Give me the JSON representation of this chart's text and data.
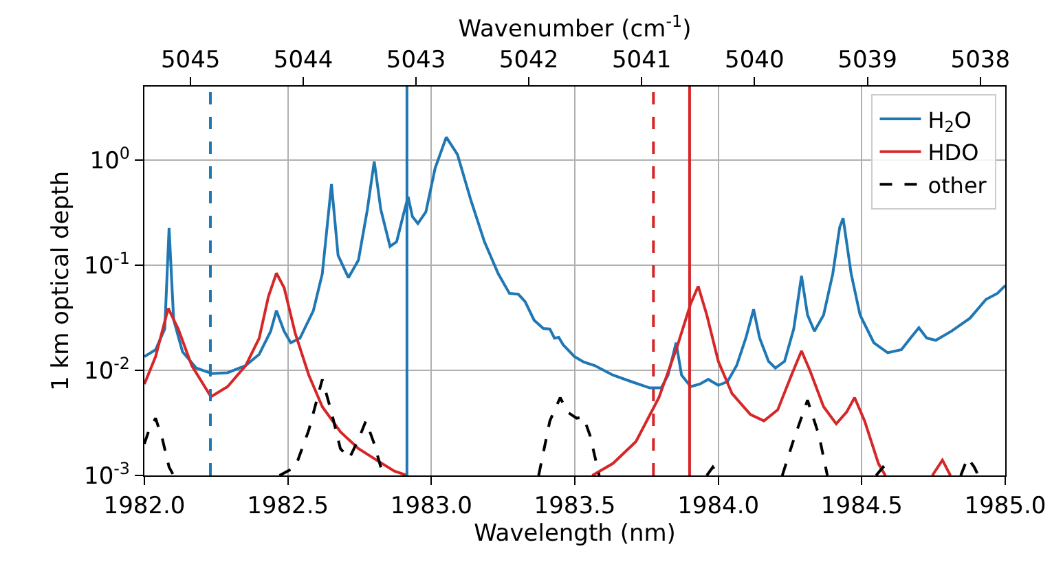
{
  "chart_data": {
    "type": "line",
    "xlabel": "Wavelength (nm)",
    "ylabel": "1 km optical depth",
    "x2label": "Wavenumber (cm$^{-1}$)",
    "xlim": [
      1982.0,
      1985.0
    ],
    "xticks": [
      {
        "value": 1982.0,
        "label": "1982.0"
      },
      {
        "value": 1982.5,
        "label": "1982.5"
      },
      {
        "value": 1983.0,
        "label": "1983.0"
      },
      {
        "value": 1983.5,
        "label": "1983.5"
      },
      {
        "value": 1984.0,
        "label": "1984.0"
      },
      {
        "value": 1984.5,
        "label": "1984.5"
      },
      {
        "value": 1985.0,
        "label": "1985.0"
      }
    ],
    "x2lim": [
      5045.41,
      5037.78
    ],
    "x2ticks": [
      5045,
      5044,
      5043,
      5042,
      5041,
      5040,
      5039,
      5038
    ],
    "ylim": [
      0.001,
      5
    ],
    "log": "y",
    "yticks": [
      {
        "value": 0.001,
        "label": "10$^{-3}$"
      },
      {
        "value": 0.01,
        "label": "10$^{-2}$"
      },
      {
        "value": 0.1,
        "label": "10$^{-1}$"
      },
      {
        "value": 1,
        "label": "10$^{0}$"
      }
    ],
    "grid": true,
    "legend": "top right",
    "series": [
      {
        "name": "H$_{2}$O",
        "color": "#1f77b4",
        "line_style": "solid",
        "x": [
          1982.0,
          1982.039,
          1982.071,
          1982.086,
          1982.102,
          1982.133,
          1982.181,
          1982.236,
          1982.29,
          1982.353,
          1982.4,
          1982.44,
          1982.46,
          1982.487,
          1982.51,
          1982.542,
          1982.589,
          1982.62,
          1982.652,
          1982.675,
          1982.711,
          1982.746,
          1982.777,
          1982.801,
          1982.824,
          1982.856,
          1982.879,
          1982.903,
          1982.919,
          1982.934,
          1982.953,
          1982.981,
          1983.013,
          1983.052,
          1983.091,
          1983.138,
          1983.185,
          1983.233,
          1983.272,
          1983.303,
          1983.327,
          1983.358,
          1983.39,
          1983.413,
          1983.429,
          1983.444,
          1983.46,
          1983.499,
          1983.531,
          1983.569,
          1983.633,
          1983.697,
          1983.761,
          1983.801,
          1983.825,
          1983.853,
          1983.872,
          1983.904,
          1983.936,
          1983.965,
          1984.0,
          1984.032,
          1984.064,
          1984.096,
          1984.123,
          1984.144,
          1984.175,
          1984.199,
          1984.231,
          1984.263,
          1984.29,
          1984.311,
          1984.335,
          1984.367,
          1984.399,
          1984.423,
          1984.435,
          1984.463,
          1984.494,
          1984.542,
          1984.59,
          1984.638,
          1984.67,
          1984.699,
          1984.726,
          1984.758,
          1984.813,
          1984.877,
          1984.933,
          1984.973,
          1985.0
        ],
        "values": [
          0.0135,
          0.0157,
          0.0247,
          0.226,
          0.0302,
          0.015,
          0.0105,
          0.0093,
          0.0095,
          0.0111,
          0.0142,
          0.0235,
          0.037,
          0.0235,
          0.0183,
          0.0202,
          0.037,
          0.083,
          0.59,
          0.124,
          0.076,
          0.112,
          0.337,
          0.97,
          0.337,
          0.151,
          0.167,
          0.305,
          0.448,
          0.29,
          0.249,
          0.321,
          0.834,
          1.65,
          1.13,
          0.413,
          0.167,
          0.083,
          0.054,
          0.053,
          0.045,
          0.03,
          0.025,
          0.0247,
          0.0202,
          0.0206,
          0.0174,
          0.0135,
          0.012,
          0.0111,
          0.009,
          0.0078,
          0.0068,
          0.0068,
          0.009,
          0.0183,
          0.009,
          0.007,
          0.0074,
          0.0082,
          0.0072,
          0.0078,
          0.0111,
          0.0203,
          0.038,
          0.0203,
          0.0122,
          0.0105,
          0.0122,
          0.0248,
          0.079,
          0.0336,
          0.0236,
          0.0336,
          0.083,
          0.229,
          0.28,
          0.083,
          0.0336,
          0.0183,
          0.0147,
          0.0157,
          0.0203,
          0.0254,
          0.0203,
          0.0193,
          0.0236,
          0.0313,
          0.0473,
          0.054,
          0.064
        ]
      },
      {
        "name": "HDO",
        "color": "#d62728",
        "line_style": "solid",
        "x": [
          1982.0,
          1982.039,
          1982.083,
          1982.118,
          1982.165,
          1982.232,
          1982.29,
          1982.353,
          1982.4,
          1982.432,
          1982.46,
          1982.487,
          1982.526,
          1982.573,
          1982.62,
          1982.683,
          1982.746,
          1982.809,
          1982.871,
          1982.915,
          1983.2,
          1983.561,
          1983.633,
          1983.713,
          1983.793,
          1983.856,
          1983.904,
          1983.93,
          1983.96,
          1984.0,
          1984.048,
          1984.112,
          1984.159,
          1984.207,
          1984.255,
          1984.29,
          1984.319,
          1984.367,
          1984.411,
          1984.447,
          1984.475,
          1984.51,
          1984.558,
          1984.582,
          1984.66,
          1984.746,
          1984.781,
          1984.809
        ],
        "values": [
          0.0074,
          0.0135,
          0.0389,
          0.0247,
          0.0111,
          0.0056,
          0.007,
          0.0111,
          0.0202,
          0.05,
          0.084,
          0.061,
          0.0223,
          0.009,
          0.0045,
          0.0026,
          0.0018,
          0.0014,
          0.0011,
          0.001,
          null,
          0.001,
          0.0013,
          0.0021,
          0.0055,
          0.0166,
          0.0433,
          0.063,
          0.0336,
          0.0122,
          0.006,
          0.0038,
          0.0033,
          0.0042,
          0.009,
          0.0153,
          0.01,
          0.0045,
          0.0031,
          0.004,
          0.0055,
          0.0033,
          0.0013,
          0.001,
          null,
          0.001,
          0.0014,
          0.001
        ]
      },
      {
        "name": "other",
        "color": "#000000",
        "line_style": "dashed",
        "x": [
          1982.0,
          1982.016,
          1982.039,
          1982.063,
          1982.086,
          1982.102,
          1982.3,
          1982.471,
          1982.526,
          1982.573,
          1982.62,
          1982.652,
          1982.683,
          1982.714,
          1982.746,
          1982.772,
          1982.801,
          1982.832,
          1983.1,
          1983.374,
          1983.413,
          1983.449,
          1983.475,
          1983.506,
          1983.53,
          1983.553,
          1983.585,
          1983.8,
          1983.96,
          1983.981,
          1984.0,
          1984.1,
          1984.223,
          1984.263,
          1984.311,
          1984.351,
          1984.38,
          1984.45,
          1984.55,
          1984.574,
          1984.598,
          1984.7,
          1984.845,
          1984.869,
          1984.892,
          1984.906
        ],
        "values": [
          0.002,
          0.0027,
          0.0035,
          0.0022,
          0.0012,
          0.001,
          null,
          0.001,
          0.0012,
          0.0027,
          0.0082,
          0.004,
          0.0018,
          0.00145,
          0.0022,
          0.0033,
          0.002,
          0.001,
          null,
          0.001,
          0.0033,
          0.0055,
          0.004,
          0.0035,
          0.0036,
          0.0024,
          0.001,
          null,
          0.001,
          0.0012,
          0.001,
          null,
          0.001,
          0.0022,
          0.0052,
          0.0024,
          0.001,
          null,
          0.001,
          0.0012,
          0.001,
          null,
          0.001,
          0.00147,
          0.0012,
          0.001
        ]
      }
    ],
    "ref_lines": [
      {
        "axis": "x",
        "value": 1982.23,
        "color": "#1f77b4",
        "line_style": "dashed"
      },
      {
        "axis": "x",
        "value": 1982.915,
        "color": "#1f77b4",
        "line_style": "solid"
      },
      {
        "axis": "x",
        "value": 1983.774,
        "color": "#d62728",
        "line_style": "dashed"
      },
      {
        "axis": "x",
        "value": 1983.9,
        "color": "#d62728",
        "line_style": "solid"
      }
    ]
  }
}
